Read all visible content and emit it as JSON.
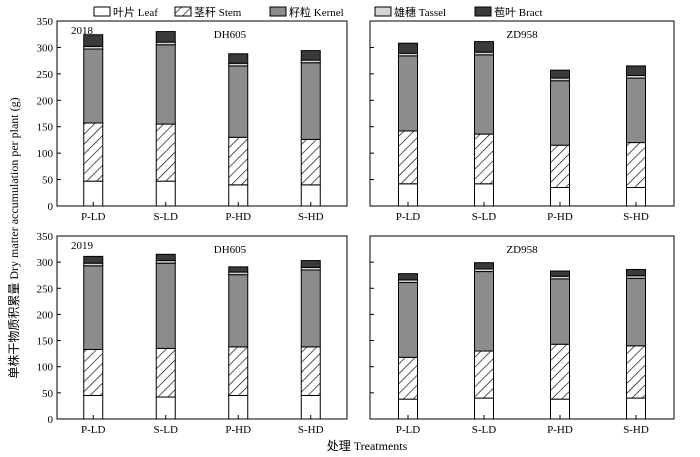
{
  "legend": [
    {
      "key": "leaf",
      "label": "叶片 Leaf",
      "fill": "white"
    },
    {
      "key": "stem",
      "label": "茎秆 Stem",
      "fill": "hatch"
    },
    {
      "key": "kernel",
      "label": "籽粒 Kernel",
      "fill": "#8c8c8c"
    },
    {
      "key": "tassel",
      "label": "雄穗 Tassel",
      "fill": "#d4d4d4"
    },
    {
      "key": "bract",
      "label": "苞叶 Bract",
      "fill": "#3a3a3a"
    }
  ],
  "ylabel": "单株干物质积累量 Dry matter accumulation per plant (g)",
  "xlabel": "处理 Treatments",
  "chart_data": [
    {
      "type": "bar",
      "stacked": true,
      "year_label": "2018",
      "title": "DH605",
      "ylim": [
        0,
        350
      ],
      "yticks": [
        0,
        50,
        100,
        150,
        200,
        250,
        300,
        350
      ],
      "show_ytick_labels": true,
      "categories": [
        "P-LD",
        "S-LD",
        "P-HD",
        "S-HD"
      ],
      "series": [
        {
          "name": "叶片 Leaf",
          "values": [
            47,
            47,
            40,
            40
          ]
        },
        {
          "name": "茎秆 Stem",
          "values": [
            110,
            108,
            90,
            86
          ]
        },
        {
          "name": "籽粒 Kernel",
          "values": [
            140,
            150,
            135,
            145
          ]
        },
        {
          "name": "雄穗 Tassel",
          "values": [
            5,
            5,
            5,
            5
          ]
        },
        {
          "name": "苞叶 Bract",
          "values": [
            22,
            20,
            18,
            18
          ]
        }
      ]
    },
    {
      "type": "bar",
      "stacked": true,
      "year_label": "",
      "title": "ZD958",
      "ylim": [
        0,
        350
      ],
      "yticks": [
        0,
        50,
        100,
        150,
        200,
        250,
        300,
        350
      ],
      "show_ytick_labels": false,
      "categories": [
        "P-LD",
        "S-LD",
        "P-HD",
        "S-HD"
      ],
      "series": [
        {
          "name": "叶片 Leaf",
          "values": [
            42,
            42,
            35,
            35
          ]
        },
        {
          "name": "茎秆 Stem",
          "values": [
            100,
            94,
            80,
            85
          ]
        },
        {
          "name": "籽粒 Kernel",
          "values": [
            142,
            150,
            122,
            122
          ]
        },
        {
          "name": "雄穗 Tassel",
          "values": [
            5,
            5,
            5,
            5
          ]
        },
        {
          "name": "苞叶 Bract",
          "values": [
            19,
            20,
            15,
            18
          ]
        }
      ]
    },
    {
      "type": "bar",
      "stacked": true,
      "year_label": "2019",
      "title": "DH605",
      "ylim": [
        0,
        350
      ],
      "yticks": [
        0,
        50,
        100,
        150,
        200,
        250,
        300,
        350
      ],
      "show_ytick_labels": true,
      "categories": [
        "P-LD",
        "S-LD",
        "P-HD",
        "S-HD"
      ],
      "series": [
        {
          "name": "叶片 Leaf",
          "values": [
            45,
            42,
            45,
            45
          ]
        },
        {
          "name": "茎秆 Stem",
          "values": [
            88,
            93,
            93,
            93
          ]
        },
        {
          "name": "籽粒 Kernel",
          "values": [
            160,
            163,
            138,
            147
          ]
        },
        {
          "name": "雄穗 Tassel",
          "values": [
            5,
            5,
            5,
            5
          ]
        },
        {
          "name": "苞叶 Bract",
          "values": [
            13,
            12,
            10,
            13
          ]
        }
      ]
    },
    {
      "type": "bar",
      "stacked": true,
      "year_label": "",
      "title": "ZD958",
      "ylim": [
        0,
        350
      ],
      "yticks": [
        0,
        50,
        100,
        150,
        200,
        250,
        300,
        350
      ],
      "show_ytick_labels": false,
      "categories": [
        "P-LD",
        "S-LD",
        "P-HD",
        "S-HD"
      ],
      "series": [
        {
          "name": "叶片 Leaf",
          "values": [
            38,
            40,
            38,
            40
          ]
        },
        {
          "name": "茎秆 Stem",
          "values": [
            80,
            90,
            105,
            100
          ]
        },
        {
          "name": "籽粒 Kernel",
          "values": [
            143,
            152,
            125,
            129
          ]
        },
        {
          "name": "雄穗 Tassel",
          "values": [
            5,
            5,
            5,
            5
          ]
        },
        {
          "name": "苞叶 Bract",
          "values": [
            12,
            12,
            10,
            12
          ]
        }
      ]
    }
  ]
}
